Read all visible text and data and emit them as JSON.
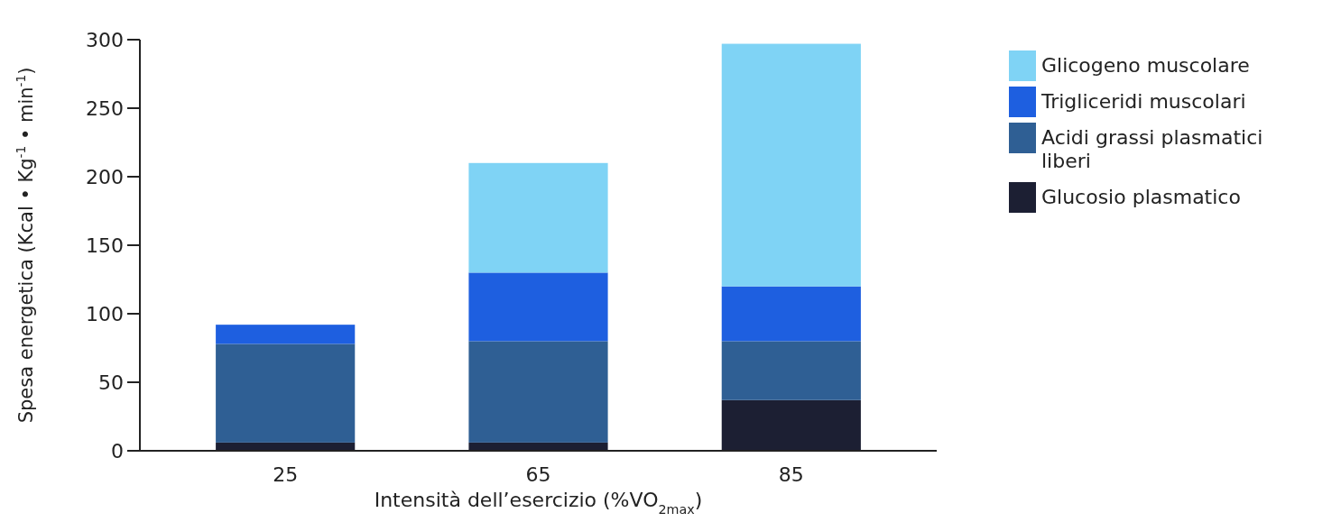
{
  "chart_data": {
    "type": "bar",
    "stacked": true,
    "xlabel": "Intensità dell’esercizio (%VO$_{2max}$)",
    "ylabel": "Spesa energetica (Kcal • Kg$^{-1}$ • min$^{-1}$)",
    "categories": [
      "25",
      "65",
      "85"
    ],
    "series": [
      {
        "name": "Glucosio plasmatico",
        "color": "#1c1f33",
        "values": [
          6,
          6,
          37
        ]
      },
      {
        "name": "Acidi grassi plasmatici liberi",
        "color": "#2f5f94",
        "values": [
          72,
          74,
          43
        ]
      },
      {
        "name": "Trigliceridi muscolari",
        "color": "#1e5fe0",
        "values": [
          14,
          50,
          40
        ]
      },
      {
        "name": "Glicogeno muscolare",
        "color": "#7fd3f5",
        "values": [
          0,
          80,
          177
        ]
      }
    ],
    "ylim": [
      0,
      300
    ],
    "yticks": [
      0,
      50,
      100,
      150,
      200,
      250,
      300
    ],
    "legend": "right"
  }
}
